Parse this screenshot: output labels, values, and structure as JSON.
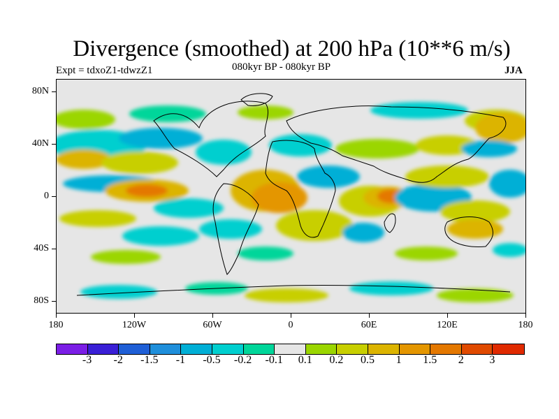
{
  "title": "Divergence (smoothed) at 200 hPa (10**6 m/s)",
  "subtitle_left": "Expt = tdxoZ1-tdwzZ1",
  "subtitle_center": "080kyr BP - 080kyr BP",
  "subtitle_right": "JJA",
  "y_axis": [
    "80N",
    "40N",
    "0",
    "40S",
    "80S"
  ],
  "x_axis": [
    "180",
    "120W",
    "60W",
    "0",
    "60E",
    "120E",
    "180"
  ],
  "colorbar": {
    "colors": [
      "#7b1ee6",
      "#3a1fd6",
      "#1f5fd6",
      "#1f8fdb",
      "#00afd6",
      "#00cfcf",
      "#00d69a",
      "#e6e6e6",
      "#9bd600",
      "#c8cf00",
      "#dcb400",
      "#e49600",
      "#e47800",
      "#e04a00",
      "#e02a00"
    ],
    "labels": [
      "-3",
      "-2",
      "-1.5",
      "-1",
      "-0.5",
      "-0.2",
      "-0.1",
      "0.1",
      "0.2",
      "0.5",
      "1",
      "1.5",
      "2",
      "3"
    ]
  }
}
